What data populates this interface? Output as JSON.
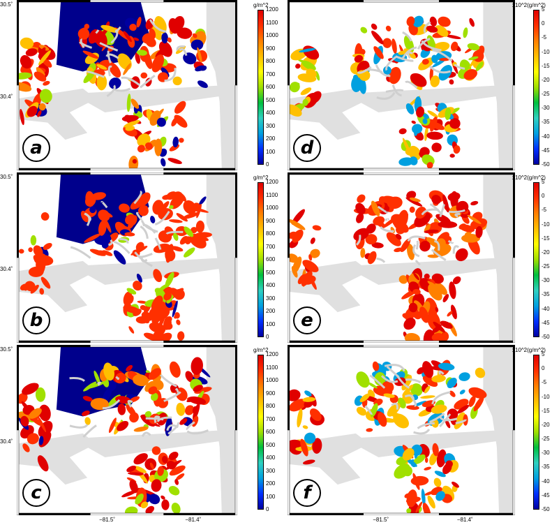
{
  "chart_data": {
    "type": "heatmap",
    "lon_ticks": [
      "−81.5˚",
      "−81.4˚"
    ],
    "lat_ticks": [
      "30.5˚",
      "30.4˚"
    ],
    "panels": [
      {
        "id": "a",
        "label": "a",
        "kind": "absolute",
        "colorbar_title": "g/m^2",
        "colorbar_ticks": [
          "1200",
          "1100",
          "1000",
          "900",
          "800",
          "700",
          "600",
          "500",
          "400",
          "300",
          "200",
          "100",
          "0"
        ],
        "vmin": 0,
        "vmax": 1200
      },
      {
        "id": "b",
        "label": "b",
        "kind": "absolute",
        "colorbar_title": "g/m^2",
        "colorbar_ticks": [
          "1200",
          "1100",
          "1000",
          "900",
          "800",
          "700",
          "600",
          "500",
          "400",
          "300",
          "200",
          "100",
          "0"
        ],
        "vmin": 0,
        "vmax": 1200
      },
      {
        "id": "c",
        "label": "c",
        "kind": "absolute",
        "colorbar_title": "g/m^2",
        "colorbar_ticks": [
          "1200",
          "1100",
          "1000",
          "900",
          "800",
          "700",
          "600",
          "500",
          "400",
          "300",
          "200",
          "100",
          "0"
        ],
        "vmin": 0,
        "vmax": 1200
      },
      {
        "id": "d",
        "label": "d",
        "kind": "difference",
        "colorbar_title": "x10^2(g/m^2)",
        "colorbar_ticks": [
          "5",
          "0",
          "-5",
          "-10",
          "-15",
          "-20",
          "-25",
          "-30",
          "-35",
          "-40",
          "-45",
          "-50"
        ],
        "vmin": -50,
        "vmax": 5
      },
      {
        "id": "e",
        "label": "e",
        "kind": "difference",
        "colorbar_title": "x10^2(g/m^2)",
        "colorbar_ticks": [
          "5",
          "0",
          "-5",
          "-10",
          "-15",
          "-20",
          "-25",
          "-30",
          "-35",
          "-40",
          "-45",
          "-50"
        ],
        "vmin": -50,
        "vmax": 5
      },
      {
        "id": "f",
        "label": "f",
        "kind": "difference",
        "colorbar_title": "x10^2(g/m^2)",
        "colorbar_ticks": [
          "5",
          "0",
          "-5",
          "-10",
          "-15",
          "-20",
          "-25",
          "-30",
          "-35",
          "-40",
          "-45",
          "-50"
        ],
        "vmin": -50,
        "vmax": 5
      }
    ],
    "colormap": [
      "#0000a0",
      "#0030ff",
      "#00a0e0",
      "#30d0c0",
      "#00c040",
      "#a0e000",
      "#ffff00",
      "#ffc000",
      "#ff8000",
      "#ff3000",
      "#e00000"
    ],
    "land_color": "#e0e0e0",
    "grid": false,
    "legend": "right-of-each-panel"
  }
}
